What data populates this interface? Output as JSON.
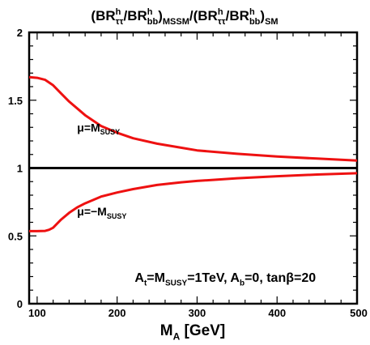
{
  "chart_data": {
    "type": "line",
    "title": {
      "parts": [
        {
          "t": "(BR"
        },
        {
          "sup": "h",
          "sub": "ττ"
        },
        {
          "t": "/BR"
        },
        {
          "sup": "h",
          "sub": "bb"
        },
        {
          "t": ")"
        },
        {
          "sub": "MSSM"
        },
        {
          "t": "/(BR"
        },
        {
          "sup": "h",
          "sub": "ττ"
        },
        {
          "t": "/BR"
        },
        {
          "sup": "h",
          "sub": "bb"
        },
        {
          "t": ")"
        },
        {
          "sub": "SM"
        }
      ]
    },
    "xlabel": {
      "parts": [
        {
          "t": "M"
        },
        {
          "sub": "A"
        },
        {
          "t": " [GeV]"
        }
      ]
    },
    "ylabel": "",
    "xlim": [
      90,
      500
    ],
    "ylim": [
      0,
      2
    ],
    "xticks": [
      100,
      200,
      300,
      400,
      500
    ],
    "yticks": [
      0,
      0.5,
      1,
      1.5,
      2
    ],
    "ytick_labels": [
      "0",
      "0.5",
      "1",
      "1.5",
      "2"
    ],
    "grid": false,
    "series": [
      {
        "color": "#ee1111",
        "x": [
          90,
          100,
          110,
          120,
          130,
          140,
          150,
          160,
          180,
          200,
          220,
          250,
          280,
          300,
          350,
          400,
          450,
          500
        ],
        "y": [
          1.67,
          1.665,
          1.65,
          1.61,
          1.55,
          1.49,
          1.44,
          1.39,
          1.31,
          1.26,
          1.22,
          1.18,
          1.15,
          1.13,
          1.105,
          1.085,
          1.07,
          1.055
        ]
      },
      {
        "color": "#ee1111",
        "x": [
          90,
          100,
          110,
          115,
          120,
          130,
          140,
          150,
          160,
          180,
          200,
          220,
          250,
          280,
          300,
          350,
          400,
          450,
          500
        ],
        "y": [
          0.535,
          0.535,
          0.537,
          0.545,
          0.56,
          0.62,
          0.67,
          0.71,
          0.74,
          0.79,
          0.82,
          0.845,
          0.875,
          0.895,
          0.905,
          0.925,
          0.94,
          0.952,
          0.962
        ]
      },
      {
        "color": "#000000",
        "x": [
          90,
          500
        ],
        "y": [
          1,
          1
        ]
      }
    ],
    "annotations": [
      {
        "x": 150,
        "y": 1.27,
        "parts": [
          {
            "t": "μ=M"
          },
          {
            "sub": "SUSY"
          }
        ]
      },
      {
        "x": 150,
        "y": 0.65,
        "parts": [
          {
            "t": "μ=−M"
          },
          {
            "sub": "SUSY"
          }
        ]
      },
      {
        "x": 222,
        "y": 0.16,
        "parts": [
          {
            "t": "A"
          },
          {
            "sub": "t"
          },
          {
            "t": "=M"
          },
          {
            "sub": "SUSY"
          },
          {
            "t": "=1TeV,  A"
          },
          {
            "sub": "b"
          },
          {
            "t": "=0,  tanβ=20"
          }
        ]
      }
    ]
  }
}
